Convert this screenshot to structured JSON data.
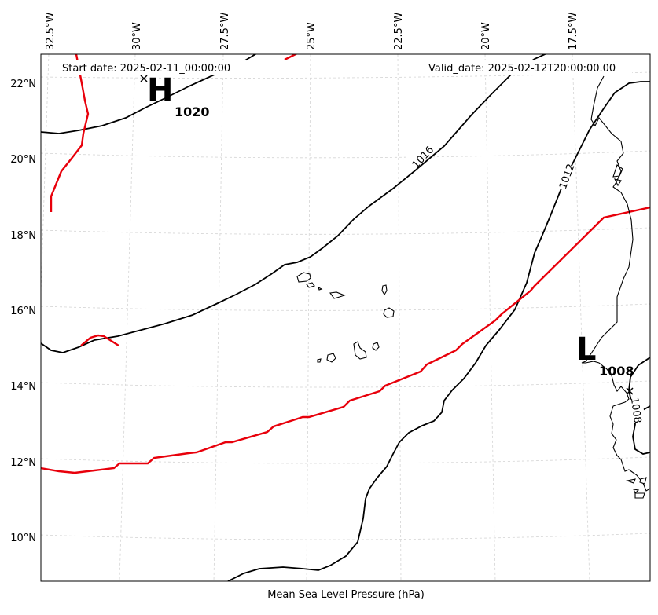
{
  "map": {
    "start_date": "Start date: 2025-02-11_00:00:00",
    "valid_date": "Valid_date: 2025-02-12T20:00:00.00",
    "caption": "Mean Sea Level Pressure (hPa)",
    "lon_labels": [
      "32.5°W",
      "30°W",
      "27.5°W",
      "25°W",
      "22.5°W",
      "20°W",
      "17.5°W"
    ],
    "lat_labels": [
      "22°N",
      "20°N",
      "18°N",
      "16°N",
      "14°N",
      "12°N",
      "10°N"
    ],
    "high": {
      "letter": "H",
      "value": "1020"
    },
    "low": {
      "letter": "L",
      "value": "1008"
    },
    "contour_labels": [
      "1016",
      "1012",
      "1008"
    ],
    "colors": {
      "isobar": "#000000",
      "front": "#e8000b",
      "grid": "#d4d4d4"
    }
  }
}
